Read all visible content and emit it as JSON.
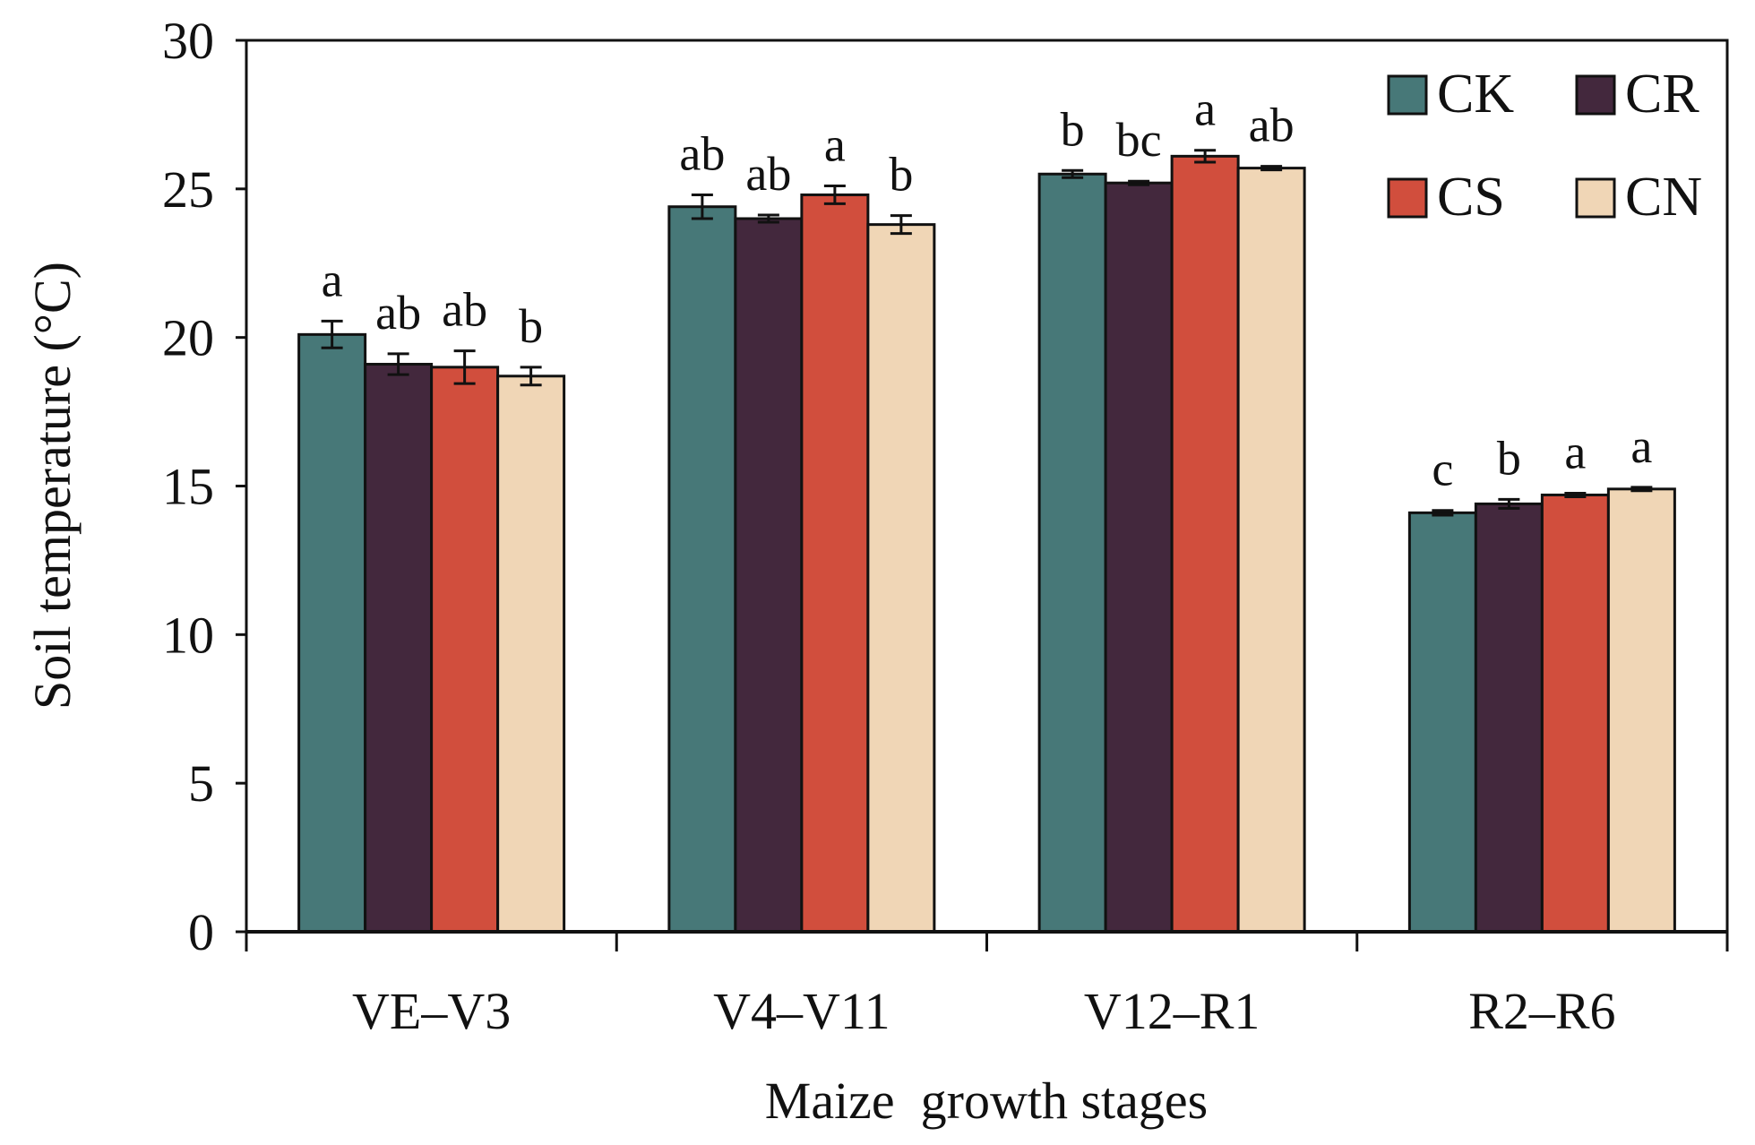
{
  "chart_data": {
    "type": "bar",
    "title": "",
    "xlabel": "Maize  growth stages",
    "ylabel": "Soil temperature (°C)",
    "ylim": [
      0,
      30
    ],
    "yticks": [
      0,
      5,
      10,
      15,
      20,
      25,
      30
    ],
    "grid": false,
    "legend_position": "top-right",
    "categories": [
      "VE–V3",
      "V4–V11",
      "V12–R1",
      "R2–R6"
    ],
    "series": [
      {
        "name": "CK",
        "color": "#477878",
        "values": [
          20.1,
          24.4,
          25.5,
          14.1
        ],
        "errors": [
          0.45,
          0.4,
          0.12,
          0.08
        ],
        "significance": [
          "a",
          "ab",
          "b",
          "c"
        ]
      },
      {
        "name": "CR",
        "color": "#43283D",
        "values": [
          19.1,
          24.0,
          25.2,
          14.4
        ],
        "errors": [
          0.35,
          0.12,
          0.06,
          0.15
        ],
        "significance": [
          "ab",
          "ab",
          "bc",
          "b"
        ]
      },
      {
        "name": "CS",
        "color": "#D14E3D",
        "values": [
          19.0,
          24.8,
          26.1,
          14.7
        ],
        "errors": [
          0.55,
          0.3,
          0.2,
          0.06
        ],
        "significance": [
          "ab",
          "a",
          "a",
          "a"
        ]
      },
      {
        "name": "CN",
        "color": "#F0D6B6",
        "values": [
          18.7,
          23.8,
          25.7,
          14.9
        ],
        "errors": [
          0.3,
          0.3,
          0.06,
          0.06
        ],
        "significance": [
          "b",
          "b",
          "ab",
          "a"
        ]
      }
    ]
  }
}
